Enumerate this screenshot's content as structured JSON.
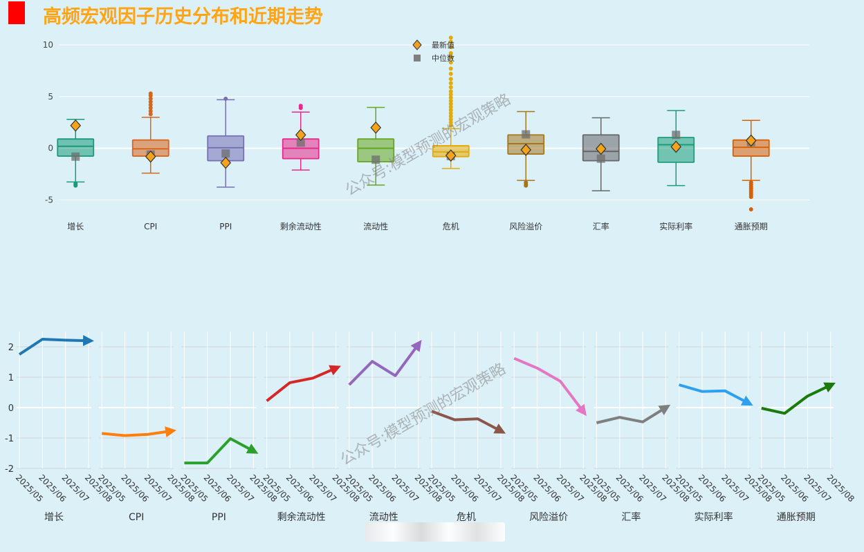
{
  "page": {
    "title": "高频宏观因子历史分布和近期走势",
    "watermark": "公众号:模型预测的宏观策略"
  },
  "colors": {
    "background": "#dcf0f8",
    "title": "#ffa515",
    "title_mark": "#ff0000"
  },
  "chart_data": [
    {
      "type": "box",
      "ylim": [
        -6.5,
        11
      ],
      "yticks": [
        -5,
        0,
        5,
        10
      ],
      "grid": true,
      "legend": {
        "placement": "top-center",
        "items": [
          {
            "label": "最新值",
            "marker": "diamond",
            "color": "#f0a020"
          },
          {
            "label": "中位数",
            "marker": "square",
            "color": "#808080"
          }
        ]
      },
      "series": [
        {
          "name": "增长",
          "color": "#1a9a78",
          "q1": -0.75,
          "median": 0.2,
          "q3": 0.9,
          "whisker_low": -3.25,
          "whisker_high": 2.8,
          "outliers": [
            -3.4,
            -3.5,
            -3.6
          ],
          "latest": 2.2,
          "median_marker": -0.8
        },
        {
          "name": "CPI",
          "color": "#d9651a",
          "q1": -0.75,
          "median": -0.05,
          "q3": 0.8,
          "whisker_low": -2.4,
          "whisker_high": 3.0,
          "outliers": [
            3.3,
            3.6,
            3.9,
            4.2,
            4.5,
            4.8,
            5.1,
            5.3
          ],
          "latest": -0.8,
          "median_marker": -0.6
        },
        {
          "name": "PPI",
          "color": "#7570b3",
          "q1": -1.2,
          "median": 0.05,
          "q3": 1.2,
          "whisker_low": -3.75,
          "whisker_high": 4.7,
          "outliers": [
            4.8
          ],
          "latest": -1.4,
          "median_marker": -0.5
        },
        {
          "name": "剩余流动性",
          "color": "#e7298a",
          "q1": -1.0,
          "median": 0.0,
          "q3": 0.9,
          "whisker_low": -2.1,
          "whisker_high": 3.5,
          "outliers": [
            3.9,
            4.1
          ],
          "latest": 1.3,
          "median_marker": 0.55
        },
        {
          "name": "流动性",
          "color": "#66a61e",
          "q1": -1.3,
          "median": 0.0,
          "q3": 0.9,
          "whisker_low": -3.55,
          "whisker_high": 3.95,
          "outliers": [],
          "latest": 2.0,
          "median_marker": -1.1
        },
        {
          "name": "危机",
          "color": "#e6ab02",
          "q1": -0.8,
          "median": -0.35,
          "q3": 0.25,
          "whisker_low": -1.95,
          "whisker_high": 1.9,
          "outliers": [
            2.2,
            2.5,
            2.8,
            3.1,
            3.4,
            3.7,
            4.0,
            4.3,
            4.6,
            4.9,
            5.2,
            5.5,
            5.9,
            6.3,
            6.7,
            7.2,
            7.7,
            8.3,
            8.8,
            9.2,
            9.8,
            10.3,
            10.7
          ],
          "latest": -0.7,
          "median_marker": -0.75
        },
        {
          "name": "风险溢价",
          "color": "#a6761d",
          "q1": -0.55,
          "median": 0.45,
          "q3": 1.3,
          "whisker_low": -3.1,
          "whisker_high": 3.55,
          "outliers": [
            -3.3,
            -3.5,
            -3.6
          ],
          "latest": -0.15,
          "median_marker": 1.35
        },
        {
          "name": "汇率",
          "color": "#666666",
          "q1": -1.2,
          "median": -0.3,
          "q3": 1.3,
          "whisker_low": -4.1,
          "whisker_high": 2.95,
          "outliers": [],
          "latest": -0.05,
          "median_marker": -1.0
        },
        {
          "name": "实际利率",
          "color": "#1b9e77",
          "q1": -1.35,
          "median": 0.35,
          "q3": 1.05,
          "whisker_low": -3.6,
          "whisker_high": 3.65,
          "outliers": [],
          "latest": 0.15,
          "median_marker": 1.3
        },
        {
          "name": "通胀预期",
          "color": "#d95f02",
          "q1": -0.75,
          "median": 0.1,
          "q3": 0.8,
          "whisker_low": -3.1,
          "whisker_high": 2.7,
          "outliers": [
            -3.3,
            -3.5,
            -3.7,
            -3.9,
            -4.1,
            -4.3,
            -4.5,
            -4.7,
            -5.9
          ],
          "latest": 0.75,
          "median_marker": 0.6
        }
      ]
    },
    {
      "type": "line",
      "ylim": [
        -2,
        2.5
      ],
      "yticks": [
        -2,
        -1,
        0,
        1,
        2
      ],
      "grid": true,
      "x": [
        "2025/05",
        "2025/06",
        "2025/07",
        "2025/08"
      ],
      "series": [
        {
          "name": "增长",
          "color": "#1f77b4",
          "values": [
            1.75,
            2.25,
            2.22,
            2.2
          ]
        },
        {
          "name": "CPI",
          "color": "#ff7f0e",
          "values": [
            -0.85,
            -0.92,
            -0.88,
            -0.77
          ]
        },
        {
          "name": "PPI",
          "color": "#2ca02c",
          "values": [
            -1.82,
            -1.82,
            -1.02,
            -1.43
          ]
        },
        {
          "name": "剩余流动性",
          "color": "#d62728",
          "values": [
            0.22,
            0.82,
            0.97,
            1.3
          ]
        },
        {
          "name": "流动性",
          "color": "#9467bd",
          "values": [
            0.75,
            1.52,
            1.05,
            2.08
          ]
        },
        {
          "name": "危机",
          "color": "#8c564b",
          "values": [
            -0.12,
            -0.4,
            -0.37,
            -0.77
          ]
        },
        {
          "name": "风险溢价",
          "color": "#e377c2",
          "values": [
            1.62,
            1.3,
            0.87,
            -0.13
          ]
        },
        {
          "name": "汇率",
          "color": "#7f7f7f",
          "values": [
            -0.5,
            -0.32,
            -0.47,
            0.0
          ]
        },
        {
          "name": "实际利率",
          "color": "#2fa0f0",
          "values": [
            0.75,
            0.53,
            0.55,
            0.15
          ]
        },
        {
          "name": "通胀预期",
          "color": "#1a7a0a",
          "values": [
            -0.02,
            -0.19,
            0.38,
            0.74
          ]
        }
      ]
    }
  ]
}
